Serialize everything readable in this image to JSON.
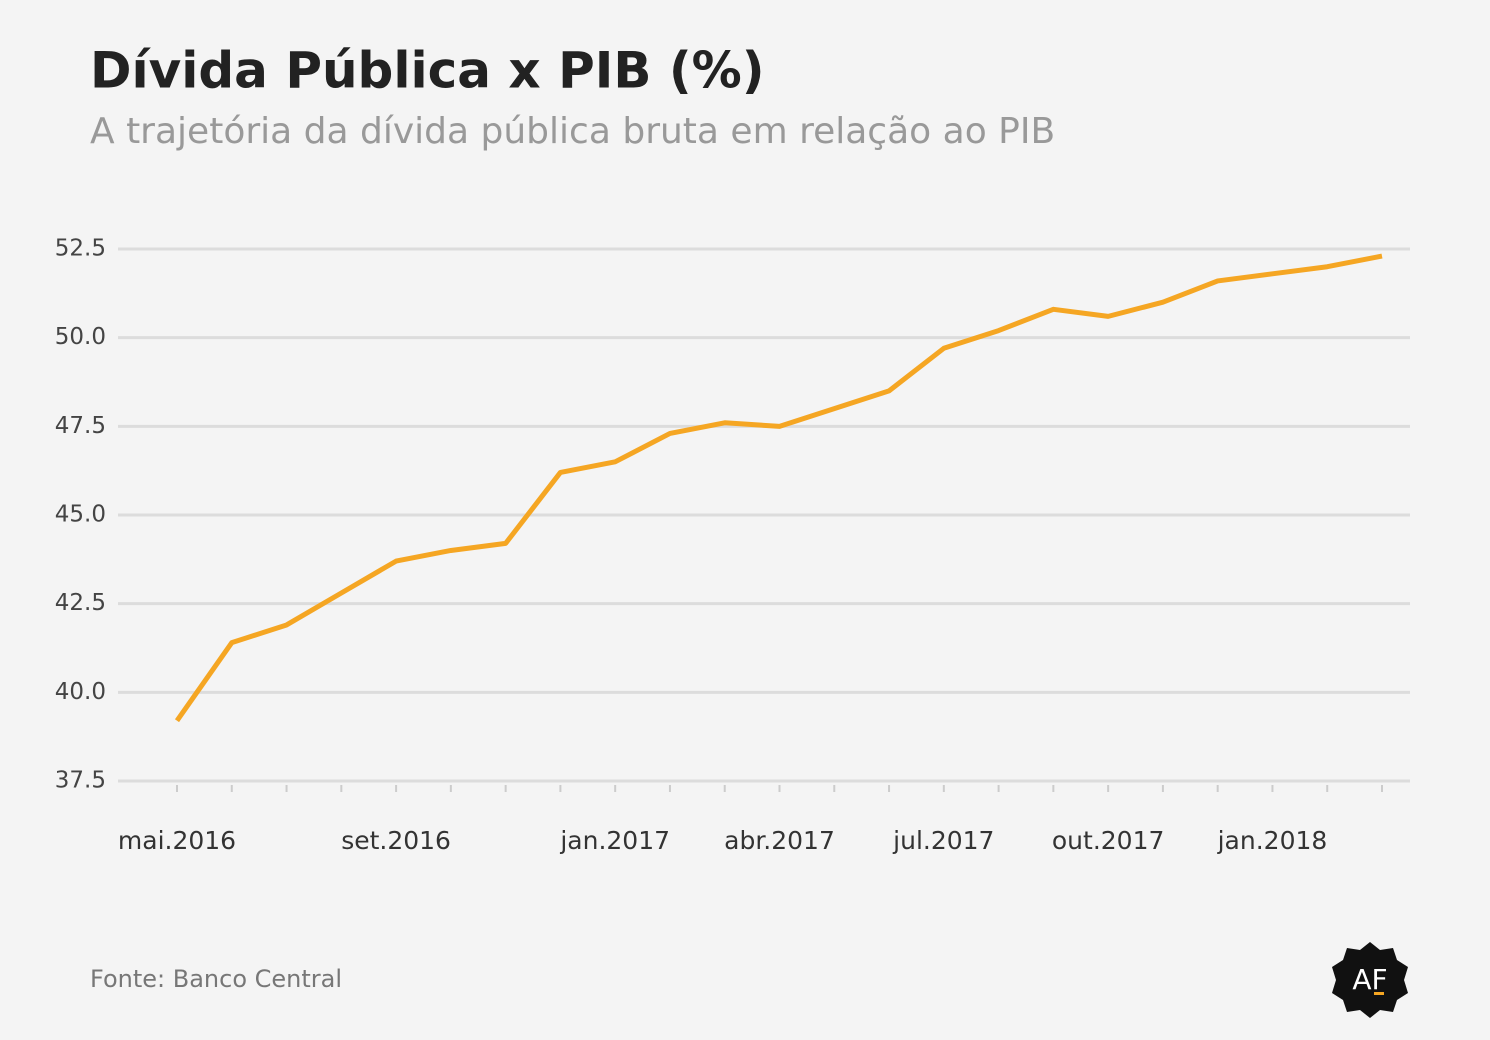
{
  "chart_data": {
    "type": "line",
    "title": "Dívida Pública x PIB (%)",
    "subtitle": "A trajetória da dívida pública bruta em relação ao PIB",
    "source": "Fonte: Banco Central",
    "logo": "AF",
    "categories": [
      "mai.2016",
      null,
      null,
      null,
      "set.2016",
      null,
      null,
      null,
      "jan.2017",
      null,
      null,
      "abr.2017",
      null,
      null,
      "jul.2017",
      null,
      null,
      "out.2017",
      null,
      null,
      "jan.2018",
      null,
      null
    ],
    "values": [
      39.2,
      41.4,
      41.9,
      42.8,
      43.7,
      44.0,
      44.2,
      46.2,
      46.5,
      47.3,
      47.6,
      47.5,
      48.0,
      48.5,
      49.7,
      50.2,
      50.8,
      50.6,
      51.0,
      51.6,
      51.8,
      52.0,
      52.3
    ],
    "color": "#f5a623",
    "ylim": [
      37.5,
      52.5
    ],
    "yticks": [
      37.5,
      {
        "value": 40,
        "label": "40.0"
      },
      42.5,
      {
        "value": 45,
        "label": "45.0"
      },
      47.5,
      {
        "value": 50,
        "label": "50.0"
      },
      52.5
    ],
    "grid": true
  }
}
